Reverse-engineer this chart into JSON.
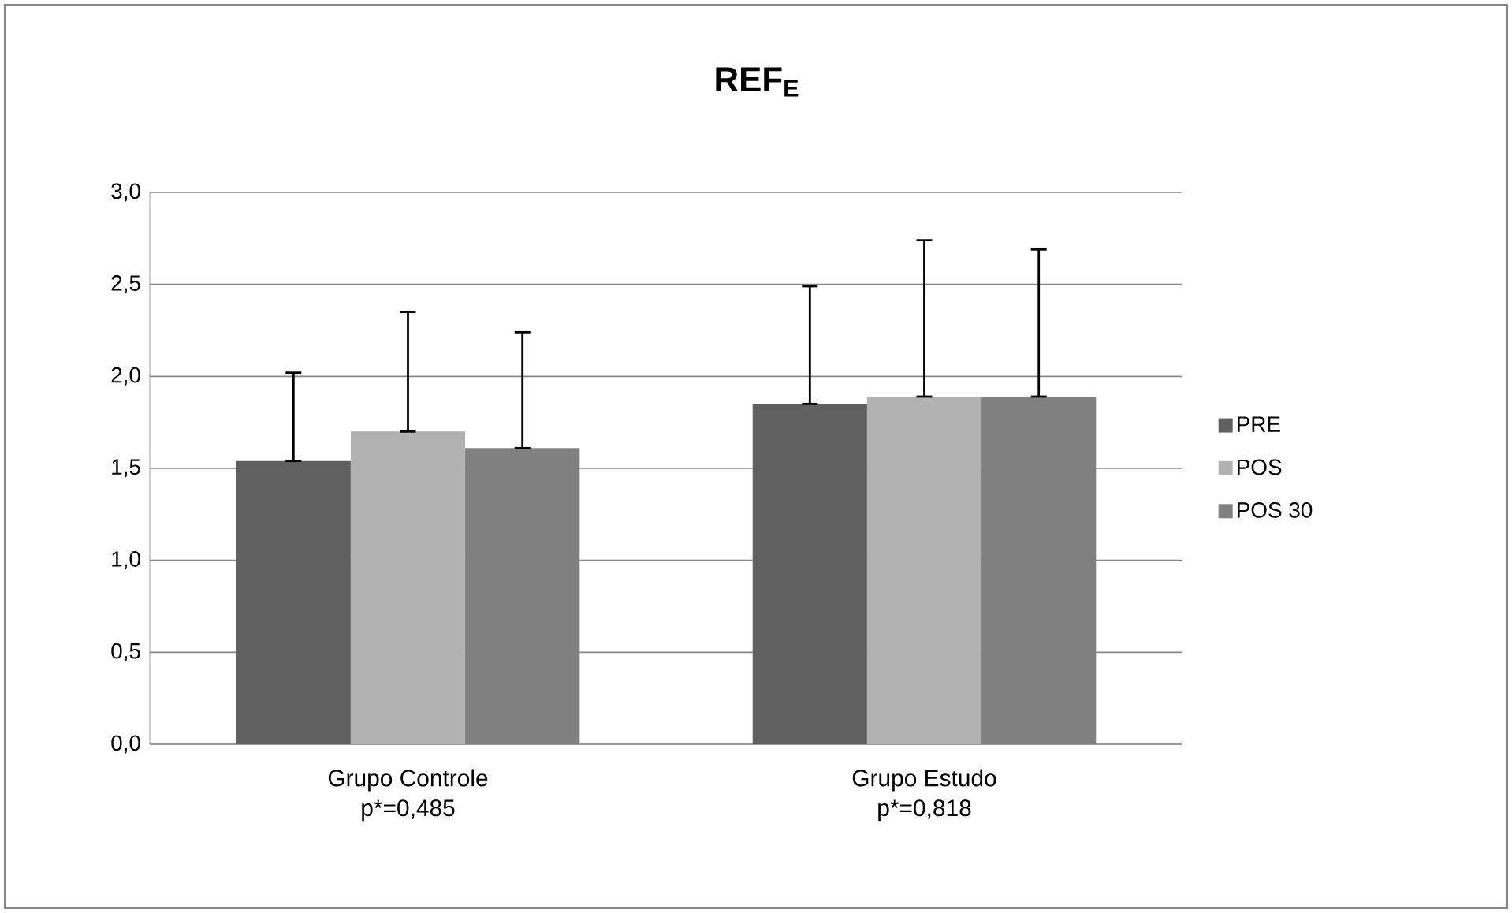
{
  "chart_data": {
    "type": "bar",
    "title": "REF$_{E}$",
    "categories": [
      "Grupo Controle",
      "Grupo Estudo"
    ],
    "annotations": [
      "p*=0,485",
      "p*=0,818"
    ],
    "series": [
      {
        "name": "PRE",
        "color": "#606060",
        "values": [
          1.54,
          1.85
        ],
        "errors": [
          [
            1.54,
            2.02
          ],
          [
            1.85,
            2.49
          ]
        ]
      },
      {
        "name": "POS",
        "color": "#b2b2b2",
        "values": [
          1.7,
          1.89
        ],
        "errors": [
          [
            1.7,
            2.35
          ],
          [
            1.89,
            2.74
          ]
        ]
      },
      {
        "name": "POS 30",
        "color": "#808080",
        "values": [
          1.61,
          1.89
        ],
        "errors": [
          [
            1.61,
            2.24
          ],
          [
            1.89,
            2.69
          ]
        ]
      }
    ],
    "ylim": [
      0,
      3
    ],
    "yticks": [
      {
        "value": 0,
        "label": "0,0"
      },
      {
        "value": 0.5,
        "label": "0,5"
      },
      {
        "value": 1,
        "label": "1,0"
      },
      {
        "value": 1.5,
        "label": "1,5"
      },
      {
        "value": 2,
        "label": "2,0"
      },
      {
        "value": 2.5,
        "label": "2,5"
      },
      {
        "value": 3,
        "label": "3,0"
      }
    ],
    "grid": "y",
    "legend": "right"
  }
}
